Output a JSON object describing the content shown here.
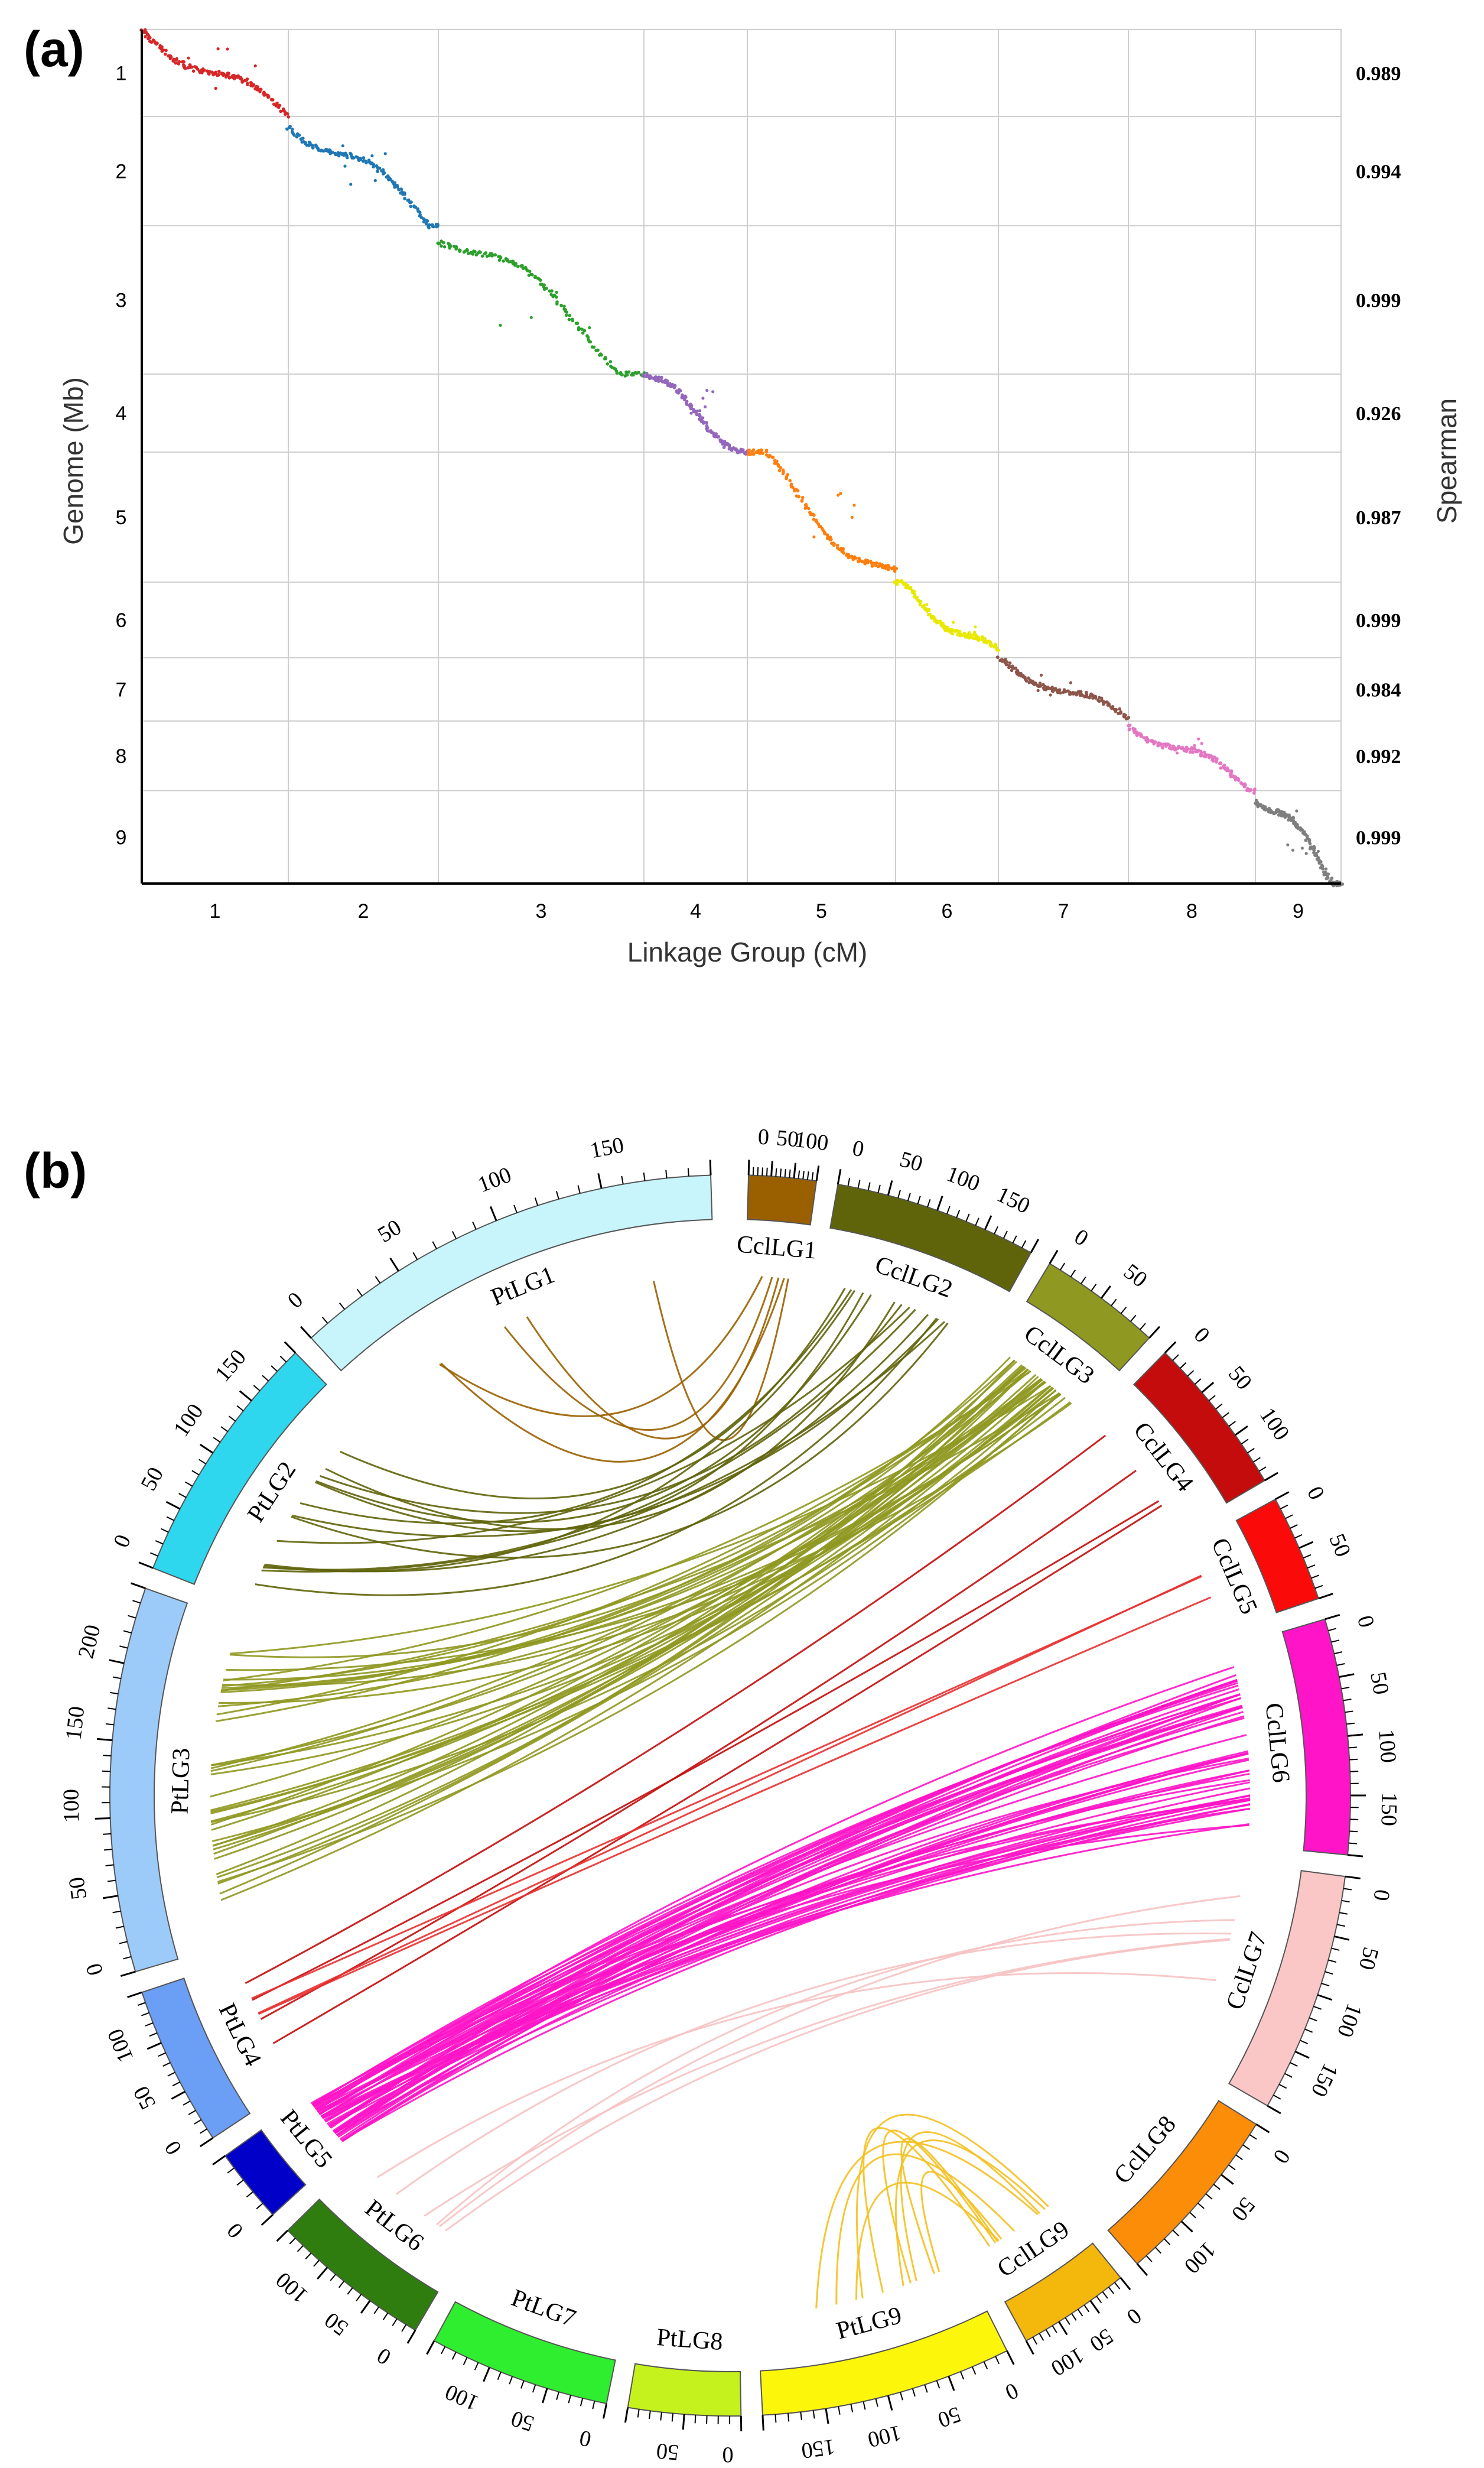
{
  "chart_data": [
    {
      "panel": "(a)",
      "type": "scatter",
      "xlabel": "Linkage Group (cM)",
      "ylabel": "Genome (Mb)",
      "y2label": "Spearman",
      "groups": [
        {
          "name": "1",
          "color": "#d62728",
          "rho": "0.989",
          "x_span": [
            0.0,
            1.0
          ],
          "y_span": [
            0.0,
            1.0
          ]
        },
        {
          "name": "2",
          "color": "#1f77b4",
          "rho": "0.994",
          "x_span": [
            0.0,
            1.0
          ],
          "y_span": [
            0.0,
            1.0
          ]
        },
        {
          "name": "3",
          "color": "#2ca02c",
          "rho": "0.999",
          "x_span": [
            0.0,
            1.0
          ],
          "y_span": [
            0.0,
            1.0
          ]
        },
        {
          "name": "4",
          "color": "#9467bd",
          "rho": "0.926",
          "x_span": [
            0.0,
            1.0
          ],
          "y_span": [
            0.0,
            1.0
          ]
        },
        {
          "name": "5",
          "color": "#ff7f0e",
          "rho": "0.987",
          "x_span": [
            0.0,
            1.0
          ],
          "y_span": [
            0.0,
            1.0
          ]
        },
        {
          "name": "6",
          "color": "#e8e800",
          "rho": "0.999",
          "x_span": [
            0.0,
            1.0
          ],
          "y_span": [
            0.0,
            1.0
          ]
        },
        {
          "name": "7",
          "color": "#8c564b",
          "rho": "0.984",
          "x_span": [
            0.0,
            1.0
          ],
          "y_span": [
            0.0,
            1.0
          ]
        },
        {
          "name": "8",
          "color": "#e377c2",
          "rho": "0.992",
          "x_span": [
            0.0,
            1.0
          ],
          "y_span": [
            0.0,
            1.0
          ]
        },
        {
          "name": "9",
          "color": "#7f7f7f",
          "rho": "0.999",
          "x_span": [
            0.0,
            1.0
          ],
          "y_span": [
            0.0,
            1.0
          ]
        }
      ]
    },
    {
      "panel": "(b)",
      "type": "circos",
      "chromosomes": [
        {
          "name": "PtLG1",
          "color": "#c8f4fb",
          "ticks": [
            "0",
            "50",
            "100",
            "150"
          ]
        },
        {
          "name": "PtLG2",
          "color": "#2ed6ee",
          "ticks": [
            "0",
            "50",
            "100",
            "150"
          ]
        },
        {
          "name": "PtLG3",
          "color": "#9ccbfa",
          "ticks": [
            "0",
            "50",
            "100",
            "150",
            "200"
          ]
        },
        {
          "name": "PtLG4",
          "color": "#6b9ef5",
          "ticks": [
            "0",
            "50",
            "100"
          ]
        },
        {
          "name": "PtLG5",
          "color": "#0000c8",
          "ticks": [
            "0"
          ]
        },
        {
          "name": "PtLG6",
          "color": "#2e7d0e",
          "ticks": [
            "0",
            "50",
            "100"
          ]
        },
        {
          "name": "PtLG7",
          "color": "#2fee2f",
          "ticks": [
            "0",
            "50",
            "100"
          ]
        },
        {
          "name": "PtLG8",
          "color": "#c5f21c",
          "ticks": [
            "0",
            "50"
          ]
        },
        {
          "name": "PtLG9",
          "color": "#fcf70a",
          "ticks": [
            "0",
            "50",
            "100",
            "150"
          ]
        },
        {
          "name": "CclLG9",
          "color": "#f4b70b",
          "ticks": [
            "0",
            "50",
            "100"
          ]
        },
        {
          "name": "CclLG8",
          "color": "#fc8d09",
          "ticks": [
            "0",
            "50",
            "100"
          ]
        },
        {
          "name": "CclLG7",
          "color": "#fbc6c6",
          "ticks": [
            "0",
            "50",
            "100",
            "150"
          ]
        },
        {
          "name": "CclLG6",
          "color": "#ff14c8",
          "ticks": [
            "0",
            "50",
            "100",
            "150"
          ]
        },
        {
          "name": "CclLG5",
          "color": "#fb0a0a",
          "ticks": [
            "0",
            "50"
          ]
        },
        {
          "name": "CclLG4",
          "color": "#c40c0c",
          "ticks": [
            "0",
            "50",
            "100"
          ]
        },
        {
          "name": "CclLG3",
          "color": "#8f9820",
          "ticks": [
            "0",
            "50"
          ]
        },
        {
          "name": "CclLG2",
          "color": "#5f640a",
          "ticks": [
            "0",
            "50",
            "100",
            "150"
          ]
        },
        {
          "name": "CclLG1",
          "color": "#9a6000",
          "ticks": [
            "0",
            "50",
            "100"
          ]
        }
      ],
      "links": [
        {
          "from": "CclLG1",
          "to": "PtLG1",
          "color": "#9a6000",
          "count": 5
        },
        {
          "from": "CclLG2",
          "to": "PtLG2",
          "color": "#5f640a",
          "count": 14
        },
        {
          "from": "CclLG3",
          "to": "PtLG3",
          "color": "#8f9820",
          "count": 40
        },
        {
          "from": "CclLG4",
          "to": "PtLG4",
          "color": "#c40c0c",
          "count": 4
        },
        {
          "from": "CclLG5",
          "to": "PtLG4",
          "color": "#e83030",
          "count": 3
        },
        {
          "from": "CclLG6",
          "to": "PtLG5",
          "color": "#ff14c8",
          "count": 50
        },
        {
          "from": "CclLG7",
          "to": "PtLG6",
          "color": "#f6c2c2",
          "count": 6
        },
        {
          "from": "CclLG9",
          "to": "PtLG9",
          "color": "#f4c020",
          "count": 10
        }
      ]
    }
  ],
  "labels": {
    "a": "(a)",
    "b": "(b)"
  }
}
